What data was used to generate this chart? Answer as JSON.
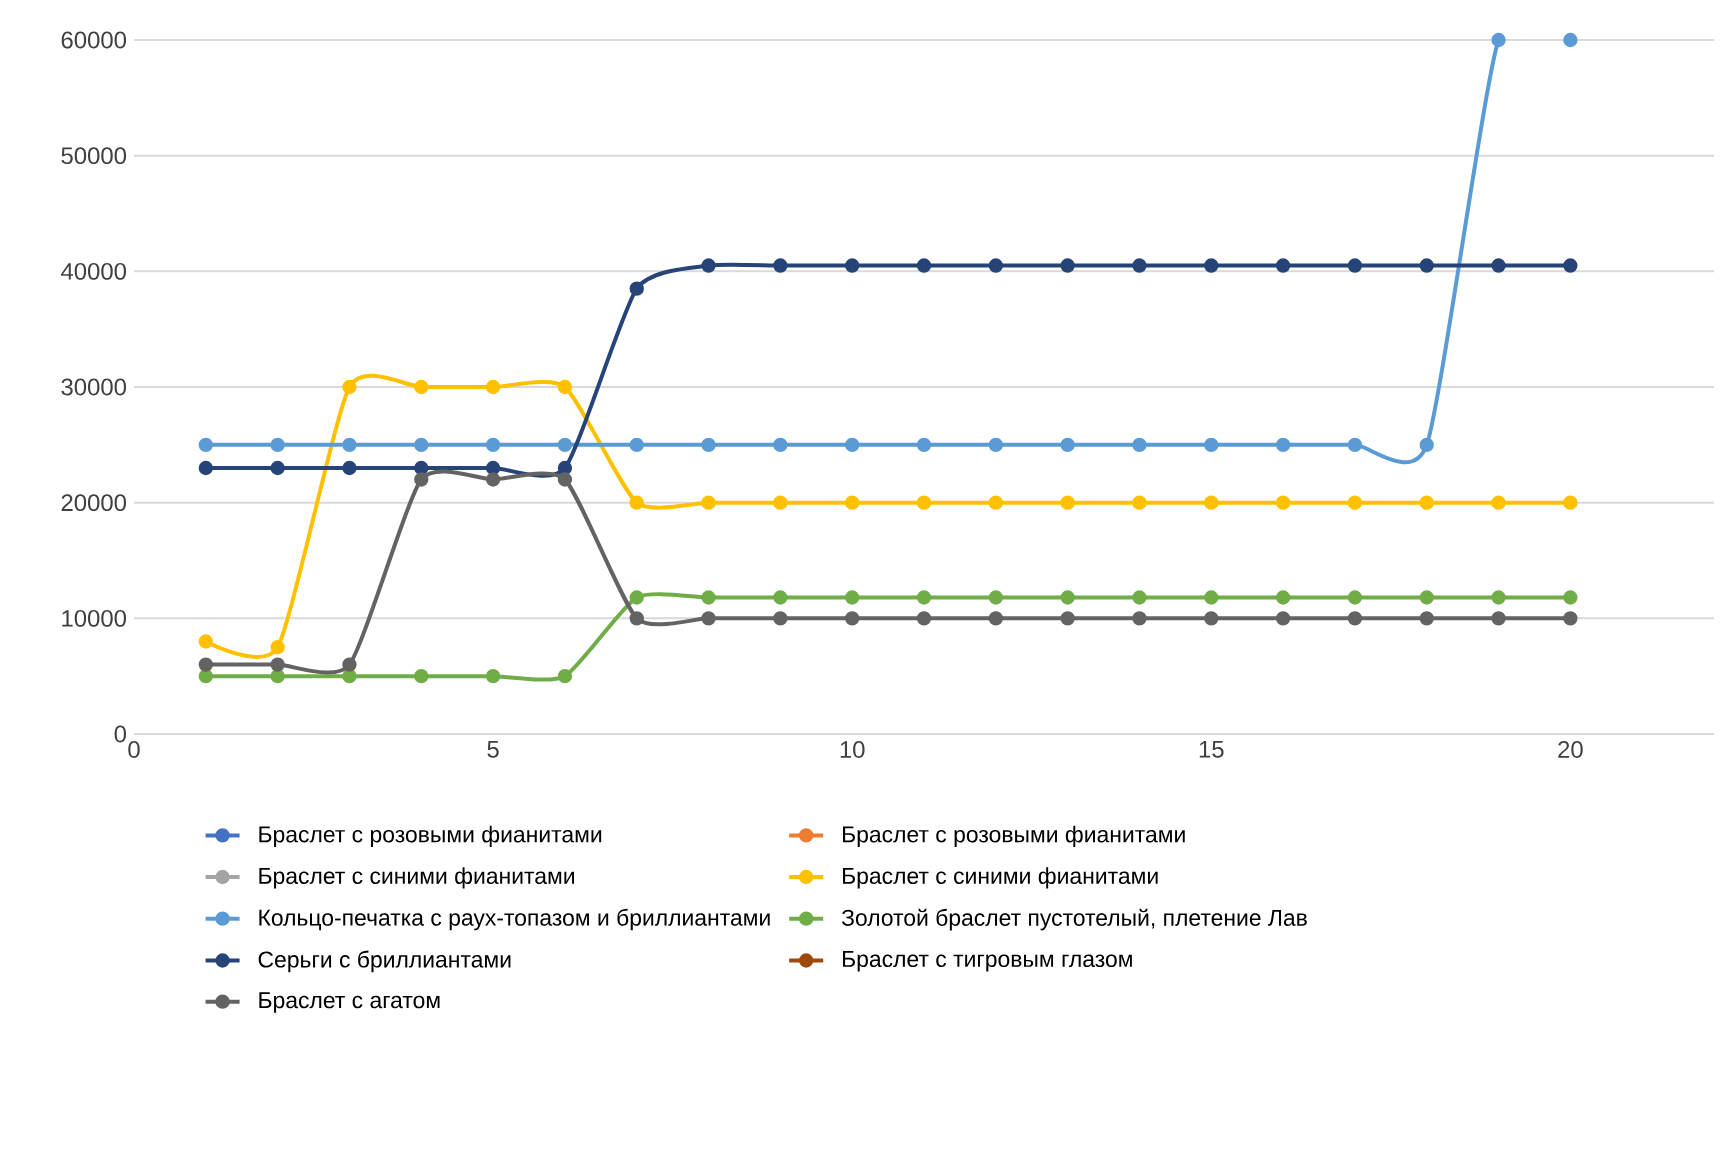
{
  "chart_data": {
    "type": "line",
    "x": [
      1,
      2,
      3,
      4,
      5,
      6,
      7,
      8,
      9,
      10,
      11,
      12,
      13,
      14,
      15,
      16,
      17,
      18,
      19,
      20
    ],
    "xlim": [
      0,
      22
    ],
    "xticks": [
      0,
      5,
      10,
      15,
      20
    ],
    "ylim": [
      0,
      60000
    ],
    "yticks": [
      0,
      10000,
      20000,
      30000,
      40000,
      50000,
      60000
    ],
    "grid": "y",
    "legend": "bottom",
    "marker": "circle",
    "line_style": "solid",
    "series": [
      {
        "name": "Браслет с розовыми фианитами",
        "color": "#4472c4",
        "values": [
          null,
          null,
          null,
          null,
          null,
          null,
          null,
          null,
          null,
          null,
          null,
          null,
          null,
          null,
          null,
          null,
          null,
          null,
          null,
          null
        ]
      },
      {
        "name": "Браслет с розовыми фианитами",
        "color": "#ed7d31",
        "values": [
          null,
          null,
          null,
          null,
          null,
          null,
          null,
          null,
          null,
          null,
          null,
          null,
          null,
          null,
          null,
          null,
          null,
          null,
          null,
          null
        ]
      },
      {
        "name": "Браслет с синими фианитами",
        "color": "#a5a5a5",
        "values": [
          null,
          null,
          null,
          null,
          null,
          null,
          null,
          null,
          null,
          null,
          null,
          null,
          null,
          null,
          null,
          null,
          null,
          null,
          null,
          null
        ]
      },
      {
        "name": "Браслет с синими фианитами",
        "color": "#ffc000",
        "values": [
          8000,
          7500,
          30000,
          30000,
          30000,
          30000,
          20000,
          20000,
          20000,
          20000,
          20000,
          20000,
          20000,
          20000,
          20000,
          20000,
          20000,
          20000,
          20000,
          20000
        ]
      },
      {
        "name": "Кольцо-печатка с раух-топазом и бриллиантами",
        "color": "#5b9bd5",
        "values": [
          25000,
          25000,
          25000,
          25000,
          25000,
          25000,
          25000,
          25000,
          25000,
          25000,
          25000,
          25000,
          25000,
          25000,
          25000,
          25000,
          25000,
          25000,
          60000,
          60000
        ]
      },
      {
        "name": "Золотой браслет пустотелый, плетение Лав",
        "color": "#70ad47",
        "values": [
          5000,
          5000,
          5000,
          5000,
          5000,
          5000,
          11800,
          11800,
          11800,
          11800,
          11800,
          11800,
          11800,
          11800,
          11800,
          11800,
          11800,
          11800,
          11800,
          11800
        ]
      },
      {
        "name": "Серьги с бриллиантами",
        "color": "#264478",
        "values": [
          23000,
          23000,
          23000,
          23000,
          23000,
          23000,
          38500,
          40500,
          40500,
          40500,
          40500,
          40500,
          40500,
          40500,
          40500,
          40500,
          40500,
          40500,
          40500,
          40500
        ]
      },
      {
        "name": "Браслет с тигровым глазом",
        "color": "#9e480e",
        "values": [
          null,
          null,
          null,
          null,
          null,
          null,
          null,
          null,
          null,
          null,
          null,
          null,
          null,
          null,
          null,
          null,
          null,
          null,
          null,
          null
        ]
      },
      {
        "name": "Браслет с агатом",
        "color": "#636363",
        "values": [
          6000,
          6000,
          6000,
          22000,
          22000,
          22000,
          10000,
          10000,
          10000,
          10000,
          10000,
          10000,
          10000,
          10000,
          10000,
          10000,
          10000,
          10000,
          10000,
          10000
        ]
      }
    ]
  }
}
